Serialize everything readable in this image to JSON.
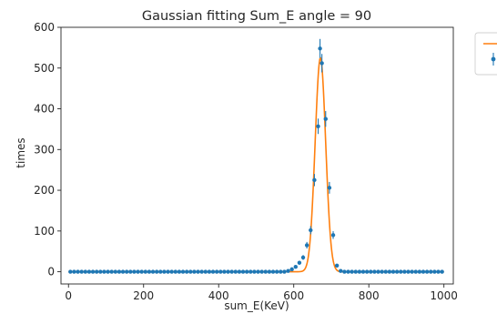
{
  "chart_data": {
    "type": "scatter",
    "title": "Gaussian fitting Sum_E angle = 90",
    "xlabel": "sum_E(KeV)",
    "ylabel": "times",
    "xlim": [
      -20,
      1025
    ],
    "ylim": [
      -30,
      600
    ],
    "xticks": [
      0,
      200,
      400,
      600,
      800,
      1000
    ],
    "yticks": [
      0,
      100,
      200,
      300,
      400,
      500,
      600
    ],
    "xtick_labels": [
      "0",
      "200",
      "400",
      "600",
      "800",
      "1000"
    ],
    "ytick_labels": [
      "0",
      "100",
      "200",
      "300",
      "400",
      "500",
      "600"
    ],
    "grid": false,
    "legend_placement": "outside-top-right",
    "series": [
      {
        "kind": "errorbar-points",
        "color": "#1f77b4",
        "x_start": 5,
        "x_step": 10,
        "count": 100,
        "nonzero": [
          [
            585,
            2
          ],
          [
            595,
            6
          ],
          [
            605,
            12
          ],
          [
            615,
            22
          ],
          [
            625,
            35
          ],
          [
            635,
            65
          ],
          [
            645,
            102
          ],
          [
            655,
            225
          ],
          [
            665,
            357
          ],
          [
            670,
            548
          ],
          [
            675,
            512
          ],
          [
            685,
            375
          ],
          [
            695,
            206
          ],
          [
            705,
            90
          ],
          [
            715,
            15
          ],
          [
            725,
            2
          ]
        ]
      },
      {
        "kind": "fit-line",
        "color": "#ff7f0e",
        "model": "gaussian",
        "amplitude": 525,
        "mean": 671,
        "sigma": 14,
        "x_range": [
          0,
          1000
        ]
      }
    ]
  }
}
